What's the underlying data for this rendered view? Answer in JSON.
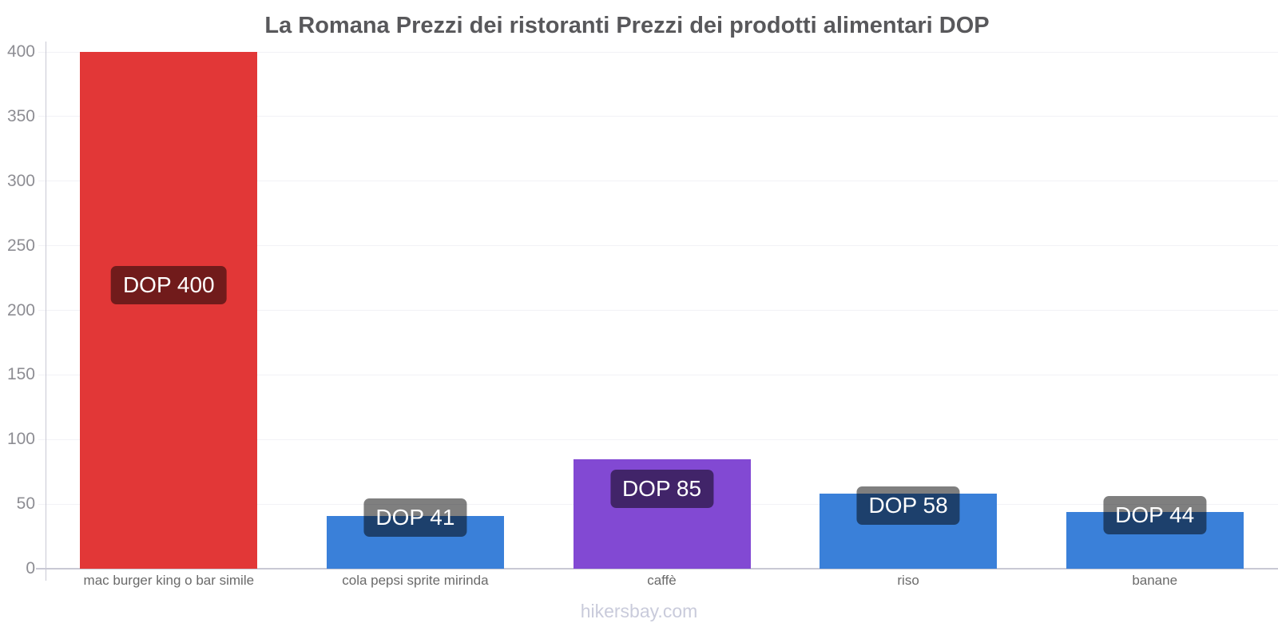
{
  "title": "La Romana Prezzi dei ristoranti Prezzi dei prodotti alimentari DOP",
  "footer": "hikersbay.com",
  "colors": {
    "red_bar": "#e23737",
    "blue_bar": "#3a80d9",
    "purple_bar": "#8249d3",
    "axis": "#c9c9d4",
    "gridline": "#f2f2f6",
    "title_text": "#58585b",
    "ytick_text": "#8d8d93",
    "category_text": "#6a6a6a",
    "watermark_text": "#c9cbdb",
    "value_label_bg": "rgba(0,0,0,0.5)",
    "value_label_text": "#ffffff"
  },
  "chart_data": {
    "type": "bar",
    "title": "La Romana Prezzi dei ristoranti Prezzi dei prodotti alimentari DOP",
    "categories": [
      "mac burger king o bar simile",
      "cola pepsi sprite mirinda",
      "caffè",
      "riso",
      "banane"
    ],
    "values": [
      400,
      41,
      85,
      58,
      44
    ],
    "value_labels": [
      "DOP 400",
      "DOP 41",
      "DOP 85",
      "DOP 58",
      "DOP 44"
    ],
    "bar_colors": [
      "#e23737",
      "#3a80d9",
      "#8249d3",
      "#3a80d9",
      "#3a80d9"
    ],
    "currency": "DOP",
    "xlabel": "",
    "ylabel": "",
    "ylim": [
      0,
      400
    ],
    "yticks": [
      0,
      50,
      100,
      150,
      200,
      250,
      300,
      350,
      400
    ],
    "grid": "horizontal",
    "legend": "none",
    "watermark": "hikersbay.com"
  }
}
